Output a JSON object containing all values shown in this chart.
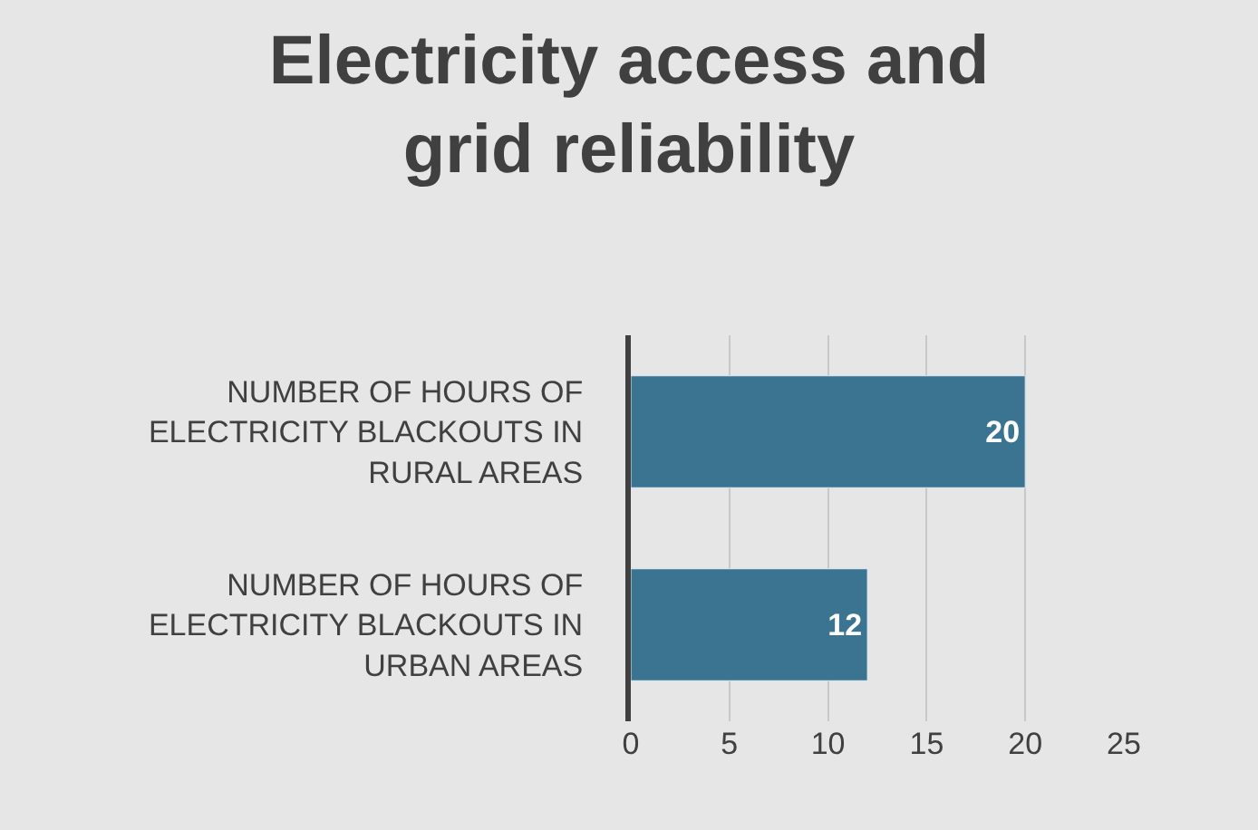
{
  "chart_data": {
    "type": "bar",
    "orientation": "horizontal",
    "title": "Electricity access and grid reliability",
    "categories": [
      "NUMBER OF HOURS OF ELECTRICITY BLACKOUTS IN RURAL AREAS",
      "NUMBER OF HOURS OF ELECTRICITY BLACKOUTS IN URBAN AREAS"
    ],
    "values": [
      20,
      12
    ],
    "color": "#3a7491",
    "xlim": [
      0,
      25
    ],
    "xticks": [
      0,
      5,
      10,
      15,
      20,
      25
    ],
    "grid": "x",
    "data_labels": true
  }
}
